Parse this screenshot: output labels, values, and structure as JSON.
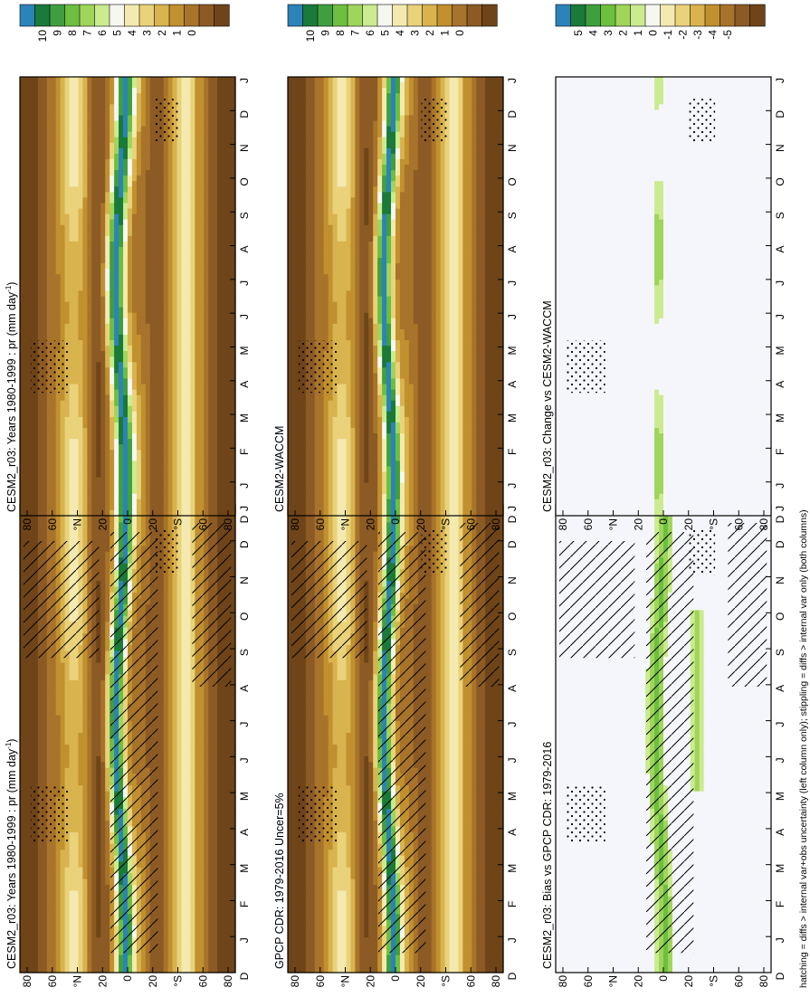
{
  "footnote": "hatching = diffs > internal var+obs uncertainty (left column only); stippling = diffs > internal var only (both columns)",
  "axes": {
    "months": [
      "D",
      "J",
      "F",
      "M",
      "A",
      "M",
      "J",
      "J",
      "A",
      "S",
      "O",
      "N",
      "D",
      "J"
    ],
    "lat_labels": [
      "80",
      "60",
      "°N",
      "20",
      "0",
      "20",
      "°S",
      "60",
      "80"
    ]
  },
  "colorbars": {
    "abs_labels": [
      "10",
      "9",
      "8",
      "7",
      "6",
      "5",
      "4",
      "3",
      "2",
      "1",
      "0"
    ],
    "diff_labels": [
      "5",
      "4",
      "3",
      "2",
      "1",
      "0",
      "-1",
      "-2",
      "-3",
      "-4",
      "-5"
    ]
  },
  "colors": {
    "abs": [
      "#2b83ba",
      "#1a7a3a",
      "#3f9f3f",
      "#6cbf3f",
      "#9fd55a",
      "#cbeb8f",
      "#f7f7f2",
      "#f4eab0",
      "#e9d27a",
      "#d8b34e",
      "#c1902f",
      "#a8732a",
      "#8c5a24",
      "#6e4418"
    ],
    "diff_background": "#f4f6fb"
  },
  "chart_data": [
    {
      "type": "heatmap",
      "panel": "top-left",
      "title": "CESM2_r03: Years 1980-1999 : pr (mm day",
      "title_sup": "-1",
      "title_tail": ")",
      "field": "absolute",
      "x": [
        "D",
        "J",
        "F",
        "M",
        "A",
        "M",
        "J",
        "J",
        "A",
        "S",
        "O",
        "N",
        "D",
        "J"
      ],
      "y": [
        "80N",
        "60N",
        "40N",
        "20N",
        "0",
        "20S",
        "40S",
        "60S",
        "80S"
      ],
      "zlim": [
        0,
        10
      ],
      "colorbar_labels": [
        "10",
        "9",
        "8",
        "7",
        "6",
        "5",
        "4",
        "3",
        "2",
        "1",
        "0"
      ],
      "hatching": true,
      "stippling": true
    },
    {
      "type": "heatmap",
      "panel": "top-right",
      "title": "CESM2_r03: Years 1980-1999 : pr (mm day",
      "title_sup": "-1",
      "title_tail": ")",
      "field": "absolute",
      "zlim": [
        0,
        10
      ],
      "colorbar_labels": [
        "10",
        "9",
        "8",
        "7",
        "6",
        "5",
        "4",
        "3",
        "2",
        "1",
        "0"
      ],
      "hatching": false,
      "stippling": true
    },
    {
      "type": "heatmap",
      "panel": "middle-left",
      "title": "GPCP CDR: 1979-2016 Uncer=5%",
      "field": "absolute",
      "zlim": [
        0,
        10
      ],
      "colorbar_labels": [
        "10",
        "9",
        "8",
        "7",
        "6",
        "5",
        "4",
        "3",
        "2",
        "1",
        "0"
      ],
      "hatching": true,
      "stippling": true
    },
    {
      "type": "heatmap",
      "panel": "middle-right",
      "title": "CESM2-WACCM",
      "field": "absolute",
      "zlim": [
        0,
        10
      ],
      "colorbar_labels": [
        "10",
        "9",
        "8",
        "7",
        "6",
        "5",
        "4",
        "3",
        "2",
        "1",
        "0"
      ],
      "hatching": false,
      "stippling": true
    },
    {
      "type": "heatmap",
      "panel": "bottom-left",
      "title": "CESM2_r03: Bias vs GPCP CDR: 1979-2016",
      "field": "difference",
      "zlim": [
        -5,
        5
      ],
      "colorbar_labels": [
        "5",
        "4",
        "3",
        "2",
        "1",
        "0",
        "-1",
        "-2",
        "-3",
        "-4",
        "-5"
      ],
      "hatching": true,
      "stippling": true
    },
    {
      "type": "heatmap",
      "panel": "bottom-right",
      "title": "CESM2_r03: Change vs CESM2-WACCM",
      "field": "difference",
      "zlim": [
        -5,
        5
      ],
      "colorbar_labels": [
        "5",
        "4",
        "3",
        "2",
        "1",
        "0",
        "-1",
        "-2",
        "-3",
        "-4",
        "-5"
      ],
      "hatching": false,
      "stippling": true
    }
  ]
}
